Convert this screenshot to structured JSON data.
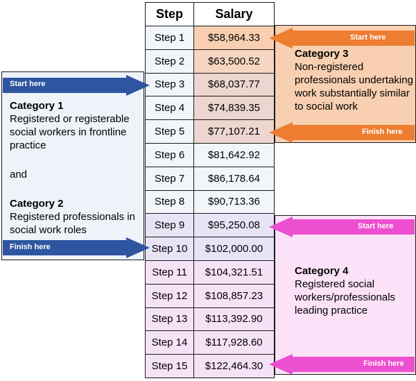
{
  "table": {
    "header_step": "Step",
    "header_salary": "Salary",
    "rows": [
      {
        "step": "Step 1",
        "salary": "$58,964.33"
      },
      {
        "step": "Step 2",
        "salary": "$63,500.52"
      },
      {
        "step": "Step 3",
        "salary": "$68,037.77"
      },
      {
        "step": "Step 4",
        "salary": "$74,839.35"
      },
      {
        "step": "Step 5",
        "salary": "$77,107.21"
      },
      {
        "step": "Step 6",
        "salary": "$81,642.92"
      },
      {
        "step": "Step 7",
        "salary": "$86,178.64"
      },
      {
        "step": "Step 8",
        "salary": "$90,713.36"
      },
      {
        "step": "Step 9",
        "salary": "$95,250.08"
      },
      {
        "step": "Step 10",
        "salary": "$102,000.00"
      },
      {
        "step": "Step 11",
        "salary": "$104,321.51"
      },
      {
        "step": "Step 12",
        "salary": "$108,857.23"
      },
      {
        "step": "Step 13",
        "salary": "$113,392.90"
      },
      {
        "step": "Step 14",
        "salary": "$117,928.60"
      },
      {
        "step": "Step 15",
        "salary": "$122,464.30"
      }
    ]
  },
  "categories": {
    "cat1": {
      "title": "Category 1",
      "desc": "Registered or registerable social workers in frontline practice",
      "joiner": "and",
      "start_label": "Start here",
      "finish_label": "Finish here"
    },
    "cat2": {
      "title": "Category 2",
      "desc": "Registered professionals in social work roles"
    },
    "cat3": {
      "title": "Category 3",
      "desc": "Non-registered professionals undertaking work substantially similar to social work",
      "start_label": "Start here",
      "finish_label": "Finish here"
    },
    "cat4": {
      "title": "Category 4",
      "desc": "Registered social workers/professionals leading practice",
      "start_label": "Start here",
      "finish_label": "Finish here"
    }
  },
  "colors": {
    "blue_arrow": "#2e55a0",
    "orange_arrow": "#ed7d31",
    "pink_arrow": "#ec4fcf"
  }
}
